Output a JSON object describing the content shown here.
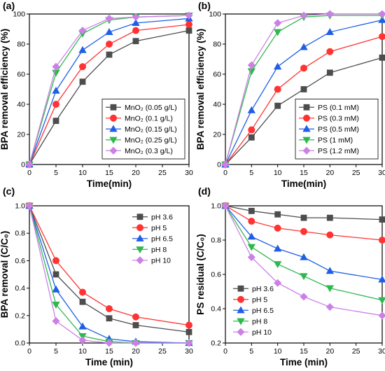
{
  "chart_data": [
    {
      "panel": "(a)",
      "type": "line",
      "xlabel": "Time(min)",
      "ylabel": "BPA removal efficiency (%)",
      "xlim": [
        0,
        30
      ],
      "ylim": [
        0,
        100
      ],
      "xticks": [
        0,
        5,
        10,
        15,
        20,
        25,
        30
      ],
      "yticks": [
        0,
        20,
        40,
        60,
        80,
        100
      ],
      "legend_position": "bottom-right",
      "legend_style": "boxed",
      "x": [
        0,
        5,
        10,
        15,
        20,
        30
      ],
      "series": [
        {
          "name": "MnO₂ (0.05 g/L)",
          "color": "#4d4d4d",
          "marker": "square",
          "values": [
            0,
            29,
            55,
            73,
            82,
            89
          ]
        },
        {
          "name": "MnO₂ (0.1 g/L)",
          "color": "#ff3333",
          "marker": "circle",
          "values": [
            0,
            40,
            65,
            80,
            89,
            93
          ]
        },
        {
          "name": "MnO₂ (0.15 g/L)",
          "color": "#1f5fe6",
          "marker": "triangle-up",
          "values": [
            0,
            49,
            76,
            88,
            94,
            97
          ]
        },
        {
          "name": "MnO₂ (0.25 g/L)",
          "color": "#2eb84d",
          "marker": "triangle-down",
          "values": [
            0,
            61,
            87,
            96,
            98,
            99
          ]
        },
        {
          "name": "MnO₂ (0.3 g/L)",
          "color": "#cc80e6",
          "marker": "diamond",
          "values": [
            0,
            65,
            89,
            97,
            98,
            99
          ]
        }
      ]
    },
    {
      "panel": "(b)",
      "type": "line",
      "xlabel": "Time(min)",
      "ylabel": "BPA removal efficiency (%)",
      "xlim": [
        0,
        30
      ],
      "ylim": [
        0,
        100
      ],
      "xticks": [
        0,
        5,
        10,
        15,
        20,
        25,
        30
      ],
      "yticks": [
        0,
        20,
        40,
        60,
        80,
        100
      ],
      "legend_position": "bottom-right",
      "legend_style": "boxed",
      "x": [
        0,
        5,
        10,
        15,
        20,
        30
      ],
      "series": [
        {
          "name": "PS (0.1 mM)",
          "color": "#4d4d4d",
          "marker": "square",
          "values": [
            0,
            18,
            39,
            50,
            61,
            71
          ]
        },
        {
          "name": "PS (0.3 mM)",
          "color": "#ff3333",
          "marker": "circle",
          "values": [
            0,
            23,
            50,
            64,
            75,
            85
          ]
        },
        {
          "name": "PS (0.5 mM)",
          "color": "#1f5fe6",
          "marker": "triangle-up",
          "values": [
            0,
            36,
            65,
            78,
            88,
            96
          ]
        },
        {
          "name": "PS (1 mM)",
          "color": "#2eb84d",
          "marker": "triangle-down",
          "values": [
            0,
            62,
            88,
            98,
            99,
            99
          ]
        },
        {
          "name": "PS (1.2 mM)",
          "color": "#cc80e6",
          "marker": "diamond",
          "values": [
            0,
            66,
            94,
            99,
            100,
            100
          ]
        }
      ]
    },
    {
      "panel": "(c)",
      "type": "line",
      "xlabel": "Time (min)",
      "ylabel": "BPA removal (C/C₀)",
      "xlim": [
        0,
        30
      ],
      "ylim": [
        0,
        1.0
      ],
      "xticks": [
        0,
        5,
        10,
        15,
        20,
        25,
        30
      ],
      "yticks": [
        0,
        0.2,
        0.4,
        0.6,
        0.8,
        1.0
      ],
      "ytick_labels": [
        "0.0",
        "0.2",
        "0.4",
        "0.6",
        "0.8",
        "1.0"
      ],
      "legend_position": "top-right",
      "legend_style": "plain",
      "x": [
        0,
        5,
        10,
        15,
        20,
        30
      ],
      "series": [
        {
          "name": "pH 3.6",
          "color": "#4d4d4d",
          "marker": "square",
          "values": [
            1.0,
            0.5,
            0.3,
            0.18,
            0.13,
            0.08
          ]
        },
        {
          "name": "pH 5",
          "color": "#ff3333",
          "marker": "circle",
          "values": [
            1.0,
            0.6,
            0.37,
            0.25,
            0.19,
            0.13
          ]
        },
        {
          "name": "pH 6.5",
          "color": "#1f5fe6",
          "marker": "triangle-up",
          "values": [
            1.0,
            0.39,
            0.12,
            0.03,
            0.01,
            0.0
          ]
        },
        {
          "name": "pH 8",
          "color": "#2eb84d",
          "marker": "triangle-down",
          "values": [
            1.0,
            0.28,
            0.05,
            0.01,
            0.0,
            0.0
          ]
        },
        {
          "name": "pH 10",
          "color": "#cc80e6",
          "marker": "diamond",
          "values": [
            1.0,
            0.16,
            0.02,
            0.0,
            0.0,
            0.0
          ]
        }
      ]
    },
    {
      "panel": "(d)",
      "type": "line",
      "xlabel": "Time (min)",
      "ylabel": "PS residual (C/C₀)",
      "xlim": [
        0,
        30
      ],
      "ylim": [
        0.2,
        1.0
      ],
      "xticks": [
        0,
        5,
        10,
        15,
        20,
        25,
        30
      ],
      "yticks": [
        0.2,
        0.4,
        0.6,
        0.8,
        1.0
      ],
      "ytick_labels": [
        "0.2",
        "0.4",
        "0.6",
        "0.8",
        "1.0"
      ],
      "legend_position": "bottom-left",
      "legend_style": "plain",
      "x": [
        0,
        5,
        10,
        15,
        20,
        30
      ],
      "series": [
        {
          "name": "pH 3.6",
          "color": "#4d4d4d",
          "marker": "square",
          "values": [
            1.0,
            0.97,
            0.95,
            0.93,
            0.93,
            0.92
          ]
        },
        {
          "name": "pH 5",
          "color": "#ff3333",
          "marker": "circle",
          "values": [
            1.0,
            0.91,
            0.87,
            0.85,
            0.83,
            0.8
          ]
        },
        {
          "name": "pH 6.5",
          "color": "#1f5fe6",
          "marker": "triangle-up",
          "values": [
            1.0,
            0.82,
            0.75,
            0.7,
            0.62,
            0.57
          ]
        },
        {
          "name": "pH 8",
          "color": "#2eb84d",
          "marker": "triangle-down",
          "values": [
            1.0,
            0.76,
            0.66,
            0.59,
            0.52,
            0.45
          ]
        },
        {
          "name": "pH 10",
          "color": "#cc80e6",
          "marker": "diamond",
          "values": [
            1.0,
            0.7,
            0.55,
            0.47,
            0.41,
            0.36
          ]
        }
      ]
    }
  ]
}
